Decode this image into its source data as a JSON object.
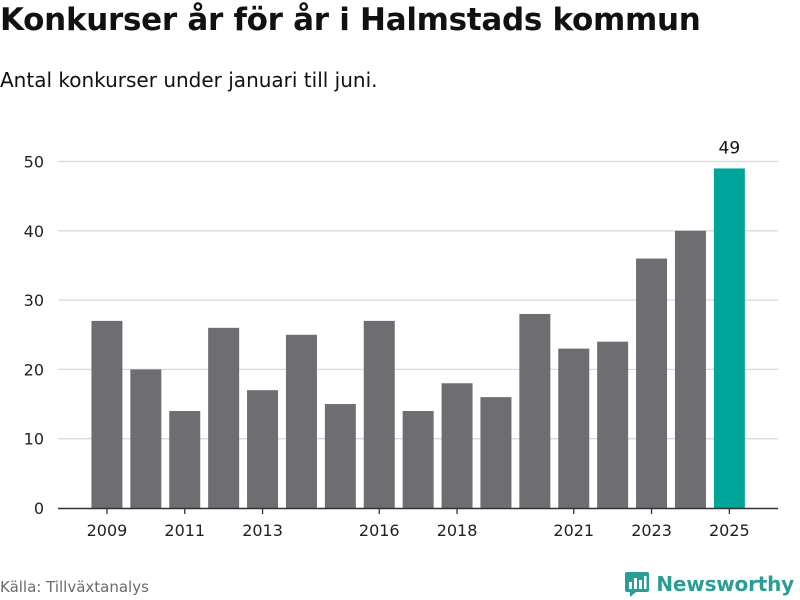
{
  "header": {
    "title": "Konkurser år för år i Halmstads kommun",
    "subtitle": "Antal konkurser under januari till juni."
  },
  "footer": {
    "source": "Källa: Tillväxtanalys",
    "brand": "Newsworthy",
    "brand_icon": "bar-chart-bubble-icon"
  },
  "colors": {
    "bar": "#6e6d72",
    "highlight": "#00a59a",
    "grid": "#d9d9d9",
    "axis": "#333333",
    "brand": "#2a9d94"
  },
  "chart_data": {
    "type": "bar",
    "title": "Konkurser år för år i Halmstads kommun",
    "subtitle": "Antal konkurser under januari till juni.",
    "categories": [
      "2009",
      "2010",
      "2011",
      "2012",
      "2013",
      "2014",
      "2015",
      "2016",
      "2017",
      "2018",
      "2019",
      "2020",
      "2021",
      "2022",
      "2023",
      "2024",
      "2025"
    ],
    "values": [
      27,
      20,
      14,
      26,
      17,
      25,
      15,
      27,
      14,
      18,
      16,
      28,
      23,
      24,
      36,
      40,
      49
    ],
    "x_tick_labels": [
      "2009",
      "2011",
      "2013",
      "2016",
      "2018",
      "2021",
      "2023",
      "2025"
    ],
    "y_ticks": [
      0,
      10,
      20,
      30,
      40,
      50
    ],
    "ylim": [
      0,
      52
    ],
    "grid": true,
    "highlight_category": "2025",
    "data_labels": [
      {
        "category": "2025",
        "text": "49"
      }
    ],
    "xlabel": "",
    "ylabel": ""
  }
}
